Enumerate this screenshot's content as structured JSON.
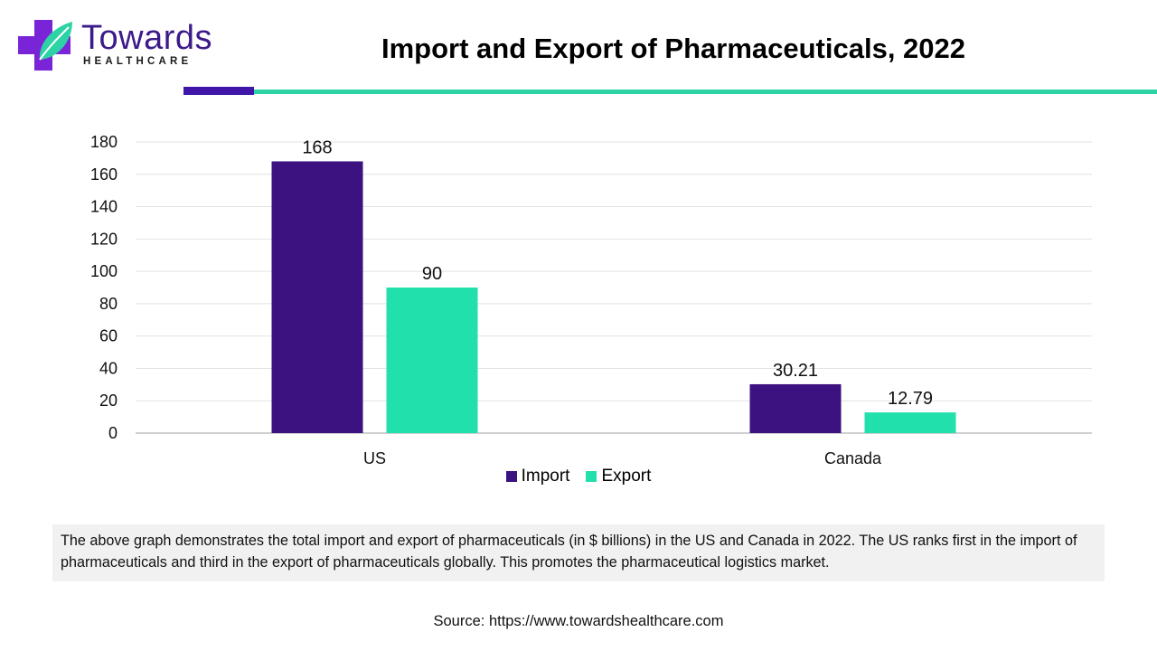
{
  "logo": {
    "word": "Towards",
    "sub": "HEALTHCARE"
  },
  "title": "Import and Export of Pharmaceuticals, 2022",
  "colors": {
    "import": "#3c1180",
    "export": "#22e0ac",
    "accent_purple": "#3f16a8",
    "accent_teal": "#2ed3a5"
  },
  "chart_data": {
    "type": "bar",
    "categories": [
      "US",
      "Canada"
    ],
    "series": [
      {
        "name": "Import",
        "values": [
          168,
          30.21
        ],
        "labels": [
          "168",
          "30.21"
        ]
      },
      {
        "name": "Export",
        "values": [
          90,
          12.79
        ],
        "labels": [
          "90",
          "12.79"
        ]
      }
    ],
    "ylim": [
      0,
      180
    ],
    "yticks": [
      0,
      20,
      40,
      60,
      80,
      100,
      120,
      140,
      160,
      180
    ],
    "grid": true,
    "legend": "bottom-center"
  },
  "legend_items": [
    "Import",
    "Export"
  ],
  "note": "The above graph demonstrates the total import and export of pharmaceuticals (in $ billions) in the US and Canada in 2022. The US ranks first in the import of pharmaceuticals and third in the export of pharmaceuticals globally. This promotes the pharmaceutical logistics market.",
  "source": "Source: https://www.towardshealthcare.com"
}
